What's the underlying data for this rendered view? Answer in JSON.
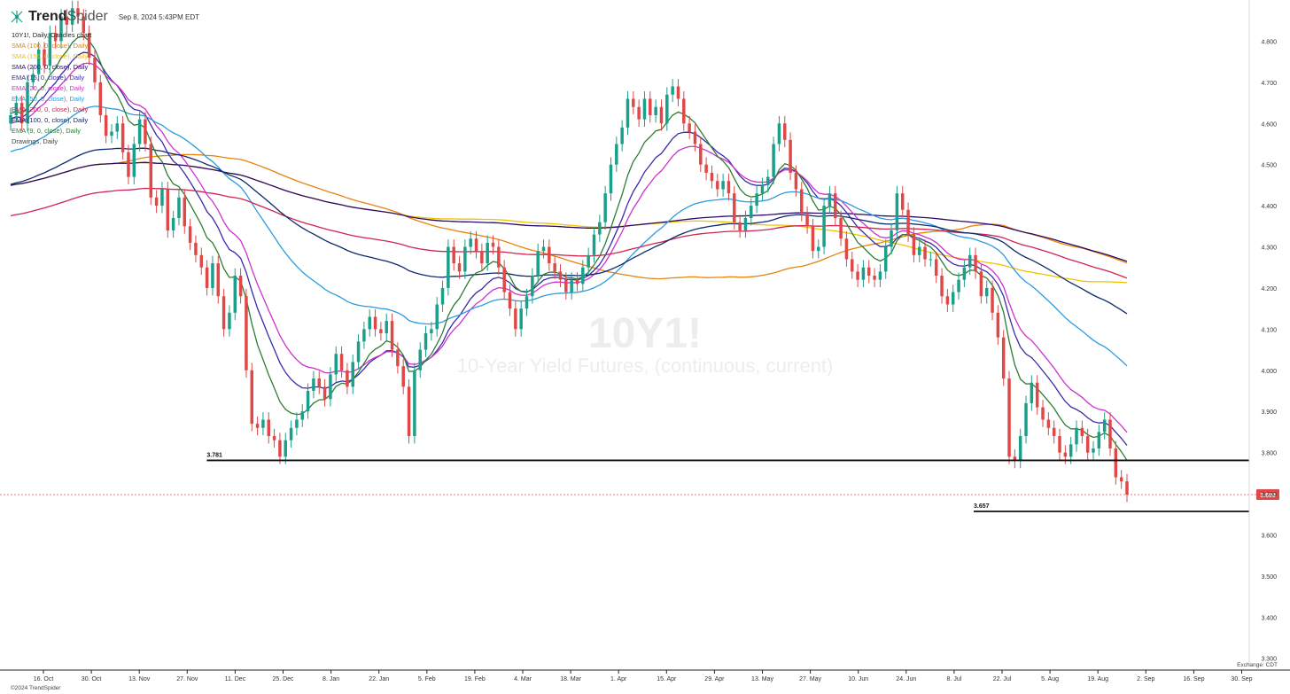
{
  "header": {
    "brand_strong": "Trend",
    "brand_light": "Spider",
    "timestamp": "Sep 8, 2024 5:43PM EDT",
    "icon": "trendspider-logo-icon"
  },
  "legend": [
    {
      "label": "10Y1!, Daily, Candles chart",
      "color": "#222222"
    },
    {
      "label": "SMA (100, 0, close), Daily",
      "color": "#e8820c"
    },
    {
      "label": "SMA (150, 0, close), Daily",
      "color": "#f2c200"
    },
    {
      "label": "SMA (200, 0, close), Daily",
      "color": "#2a0a6b"
    },
    {
      "label": "EMA (15, 0, close), Daily",
      "color": "#3b2aa8"
    },
    {
      "label": "EMA (20, 0, close), Daily",
      "color": "#cc33cc"
    },
    {
      "label": "EMA (50, 0, close), Daily",
      "color": "#2b9be0"
    },
    {
      "label": "EMA (200, 0, close), Daily",
      "color": "#d1234f"
    },
    {
      "label": "EMA (100, 0, close), Daily",
      "color": "#0d2a6e"
    },
    {
      "label": "EMA (9, 0, close), Daily",
      "color": "#2e7d32"
    },
    {
      "label": "Drawings, Daily",
      "color": "#444444"
    }
  ],
  "watermark": {
    "symbol": "10Y1!",
    "description": "10-Year Yield Futures, (continuous, current)"
  },
  "footer": {
    "copyright": "©2024 TrendSpider",
    "exchange": "Exchange: CDT"
  },
  "chart_data": {
    "type": "candlestick",
    "symbol": "10Y1!",
    "interval": "Daily",
    "ylim": [
      3.28,
      4.9
    ],
    "y_ticks": [
      "4.800",
      "4.700",
      "4.600",
      "4.500",
      "4.400",
      "4.300",
      "4.200",
      "4.100",
      "4.000",
      "3.900",
      "3.800",
      "3.700",
      "3.600",
      "3.500",
      "3.400",
      "3.300"
    ],
    "x_ticks": [
      "16. Oct",
      "30. Oct",
      "13. Nov",
      "27. Nov",
      "11. Dec",
      "25. Dec",
      "8. Jan",
      "22. Jan",
      "5. Feb",
      "19. Feb",
      "4. Mar",
      "18. Mar",
      "1. Apr",
      "15. Apr",
      "29. Apr",
      "13. May",
      "27. May",
      "10. Jun",
      "24. Jun",
      "8. Jul",
      "22. Jul",
      "5. Aug",
      "19. Aug",
      "2. Sep",
      "16. Sep",
      "30. Sep"
    ],
    "last_price": {
      "value": 3.698,
      "label": "3.698",
      "color": "#e04848"
    },
    "levels": [
      {
        "value": 3.781,
        "label": "3.781",
        "from": "11. Dec",
        "to": "30. Sep"
      },
      {
        "value": 3.657,
        "label": "3.657",
        "from": "22. Jul",
        "to": "30. Sep"
      }
    ],
    "candle_colors": {
      "up": "#1aa08a",
      "down": "#e04848"
    },
    "candles_close": [
      4.62,
      4.65,
      4.6,
      4.7,
      4.72,
      4.78,
      4.74,
      4.82,
      4.8,
      4.86,
      4.84,
      4.88,
      4.86,
      4.82,
      4.76,
      4.7,
      4.62,
      4.57,
      4.58,
      4.6,
      4.53,
      4.47,
      4.55,
      4.61,
      4.55,
      4.42,
      4.4,
      4.44,
      4.34,
      4.37,
      4.42,
      4.35,
      4.31,
      4.28,
      4.25,
      4.2,
      4.26,
      4.18,
      4.1,
      4.14,
      4.23,
      4.18,
      4.0,
      3.87,
      3.86,
      3.88,
      3.84,
      3.83,
      3.79,
      3.83,
      3.86,
      3.88,
      3.9,
      3.95,
      3.98,
      3.96,
      3.93,
      3.99,
      4.04,
      4.0,
      3.96,
      4.02,
      4.07,
      4.1,
      4.13,
      4.1,
      4.09,
      4.12,
      4.05,
      4.01,
      3.96,
      3.84,
      4.0,
      4.05,
      4.09,
      4.1,
      4.16,
      4.2,
      4.3,
      4.26,
      4.24,
      4.3,
      4.32,
      4.29,
      4.26,
      4.31,
      4.3,
      4.25,
      4.19,
      4.15,
      4.1,
      4.15,
      4.18,
      4.23,
      4.29,
      4.3,
      4.26,
      4.24,
      4.22,
      4.19,
      4.22,
      4.21,
      4.25,
      4.28,
      4.33,
      4.36,
      4.43,
      4.5,
      4.55,
      4.59,
      4.66,
      4.64,
      4.61,
      4.66,
      4.62,
      4.64,
      4.6,
      4.67,
      4.69,
      4.66,
      4.6,
      4.58,
      4.55,
      4.5,
      4.48,
      4.46,
      4.44,
      4.46,
      4.43,
      4.36,
      4.34,
      4.37,
      4.4,
      4.43,
      4.45,
      4.47,
      4.55,
      4.6,
      4.56,
      4.48,
      4.44,
      4.38,
      4.35,
      4.29,
      4.3,
      4.4,
      4.43,
      4.37,
      4.32,
      4.27,
      4.24,
      4.22,
      4.25,
      4.23,
      4.22,
      4.24,
      4.3,
      4.34,
      4.43,
      4.39,
      4.33,
      4.28,
      4.3,
      4.27,
      4.27,
      4.23,
      4.18,
      4.16,
      4.19,
      4.22,
      4.25,
      4.28,
      4.24,
      4.18,
      4.2,
      4.14,
      4.08,
      3.98,
      3.79,
      3.78,
      3.84,
      3.92,
      3.97,
      3.91,
      3.88,
      3.86,
      3.84,
      3.8,
      3.79,
      3.82,
      3.86,
      3.84,
      3.8,
      3.81,
      3.85,
      3.88,
      3.81,
      3.74,
      3.73,
      3.698
    ]
  }
}
